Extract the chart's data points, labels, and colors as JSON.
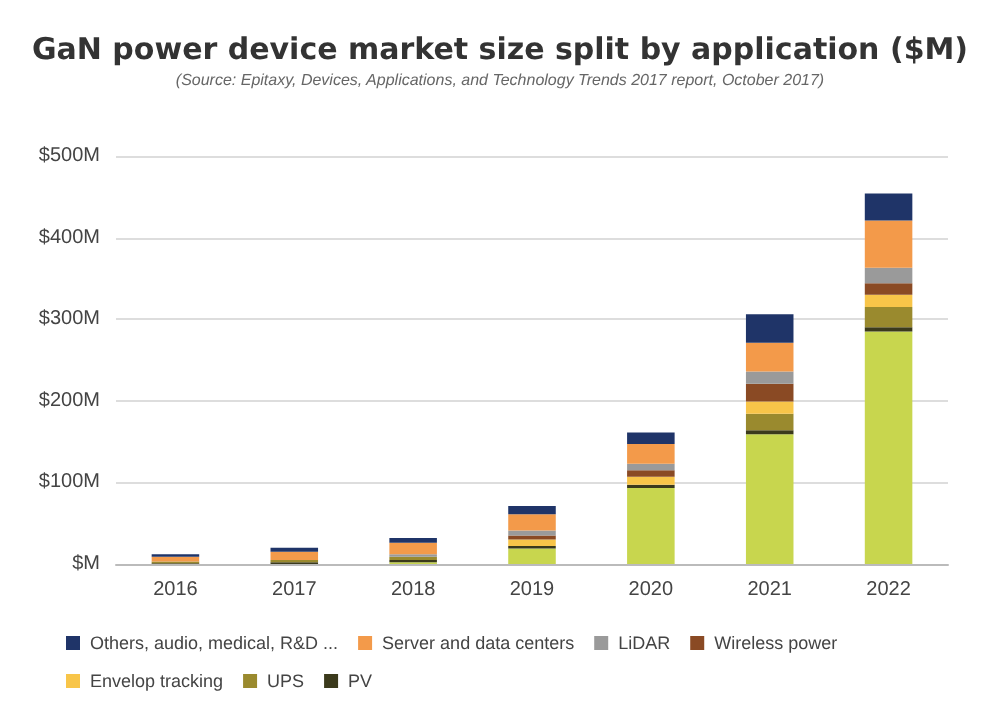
{
  "chart_data": {
    "type": "bar",
    "title": "GaN power device market size split by application ($M)",
    "subtitle": "(Source: Epitaxy, Devices, Applications, and Technology Trends 2017 report, October 2017)",
    "categories": [
      "2016",
      "2017",
      "2018",
      "2019",
      "2020",
      "2021",
      "2022"
    ],
    "stacked": true,
    "series": [
      {
        "color": "#c8d64e",
        "values": [
          0,
          0,
          2,
          19,
          93,
          159,
          285
        ]
      },
      {
        "name": "PV",
        "color": "#3b3a1c",
        "values": [
          1,
          2,
          3,
          3,
          4,
          5,
          5
        ]
      },
      {
        "name": "UPS",
        "color": "#9a8a2e",
        "values": [
          2,
          3,
          4,
          0,
          0,
          20,
          25
        ]
      },
      {
        "name": "Envelop tracking",
        "color": "#f8c549",
        "values": [
          0,
          0,
          0,
          8,
          10,
          15,
          15
        ]
      },
      {
        "name": "Wireless power",
        "color": "#8a4a24",
        "values": [
          0,
          0,
          0,
          5,
          8,
          22,
          14
        ]
      },
      {
        "name": "LiDAR",
        "color": "#9a9a9a",
        "values": [
          0,
          0,
          3,
          6,
          8,
          15,
          19
        ]
      },
      {
        "name": "Server and data centers",
        "color": "#f39a4a",
        "values": [
          6,
          10,
          14,
          20,
          24,
          35,
          58
        ]
      },
      {
        "name": "Others, audio, medical, R&D ...",
        "color": "#1f3468",
        "values": [
          3,
          5,
          6,
          10,
          14,
          35,
          33
        ]
      }
    ],
    "ylim": [
      0,
      500
    ],
    "yticks": [
      {
        "value": 0,
        "label": "$M"
      },
      {
        "value": 100,
        "label": "$100M"
      },
      {
        "value": 200,
        "label": "$200M"
      },
      {
        "value": 300,
        "label": "$300M"
      },
      {
        "value": 400,
        "label": "$400M"
      },
      {
        "value": 500,
        "label": "$500M"
      }
    ],
    "grid": "y",
    "legend": "bottom"
  }
}
